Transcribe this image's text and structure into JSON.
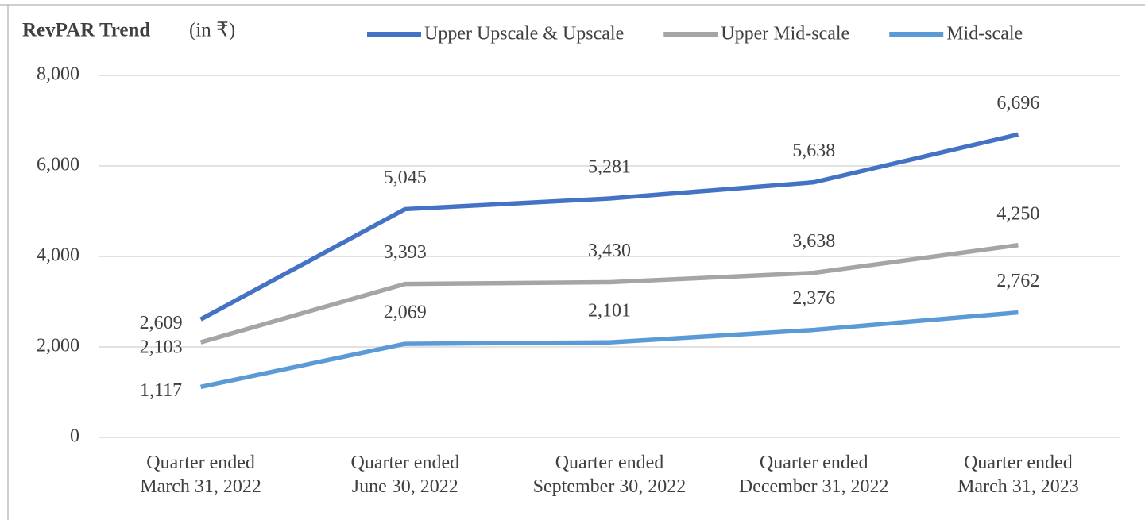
{
  "chart_data": {
    "type": "line",
    "title": "RevPAR Trend",
    "subtitle": "(in ₹)",
    "categories": [
      "Quarter ended\nMarch 31, 2022",
      "Quarter ended\nJune 30, 2022",
      "Quarter ended\nSeptember 30, 2022",
      "Quarter ended\nDecember 31, 2022",
      "Quarter ended\nMarch 31, 2023"
    ],
    "series": [
      {
        "name": "Upper Upscale & Upscale",
        "color": "#4472c4",
        "values": [
          2609,
          5045,
          5281,
          5638,
          6696
        ],
        "value_labels": [
          "2,609",
          "5,045",
          "5,281",
          "5,638",
          "6,696"
        ]
      },
      {
        "name": "Upper Mid-scale",
        "color": "#a5a5a5",
        "values": [
          2103,
          3393,
          3430,
          3638,
          4250
        ],
        "value_labels": [
          "2,103",
          "3,393",
          "3,430",
          "3,638",
          "4,250"
        ]
      },
      {
        "name": "Mid-scale",
        "color": "#5b9bd5",
        "values": [
          1117,
          2069,
          2101,
          2376,
          2762
        ],
        "value_labels": [
          "1,117",
          "2,069",
          "2,101",
          "2,376",
          "2,762"
        ]
      }
    ],
    "ylim": [
      0,
      8000
    ],
    "yticks": [
      0,
      {
        "value": 2000,
        "label": "2,000"
      },
      {
        "value": 4000,
        "label": "4,000"
      },
      {
        "value": 6000,
        "label": "6,000"
      },
      {
        "value": 8000,
        "label": "8,000"
      }
    ],
    "grid": true,
    "legend": "top"
  }
}
